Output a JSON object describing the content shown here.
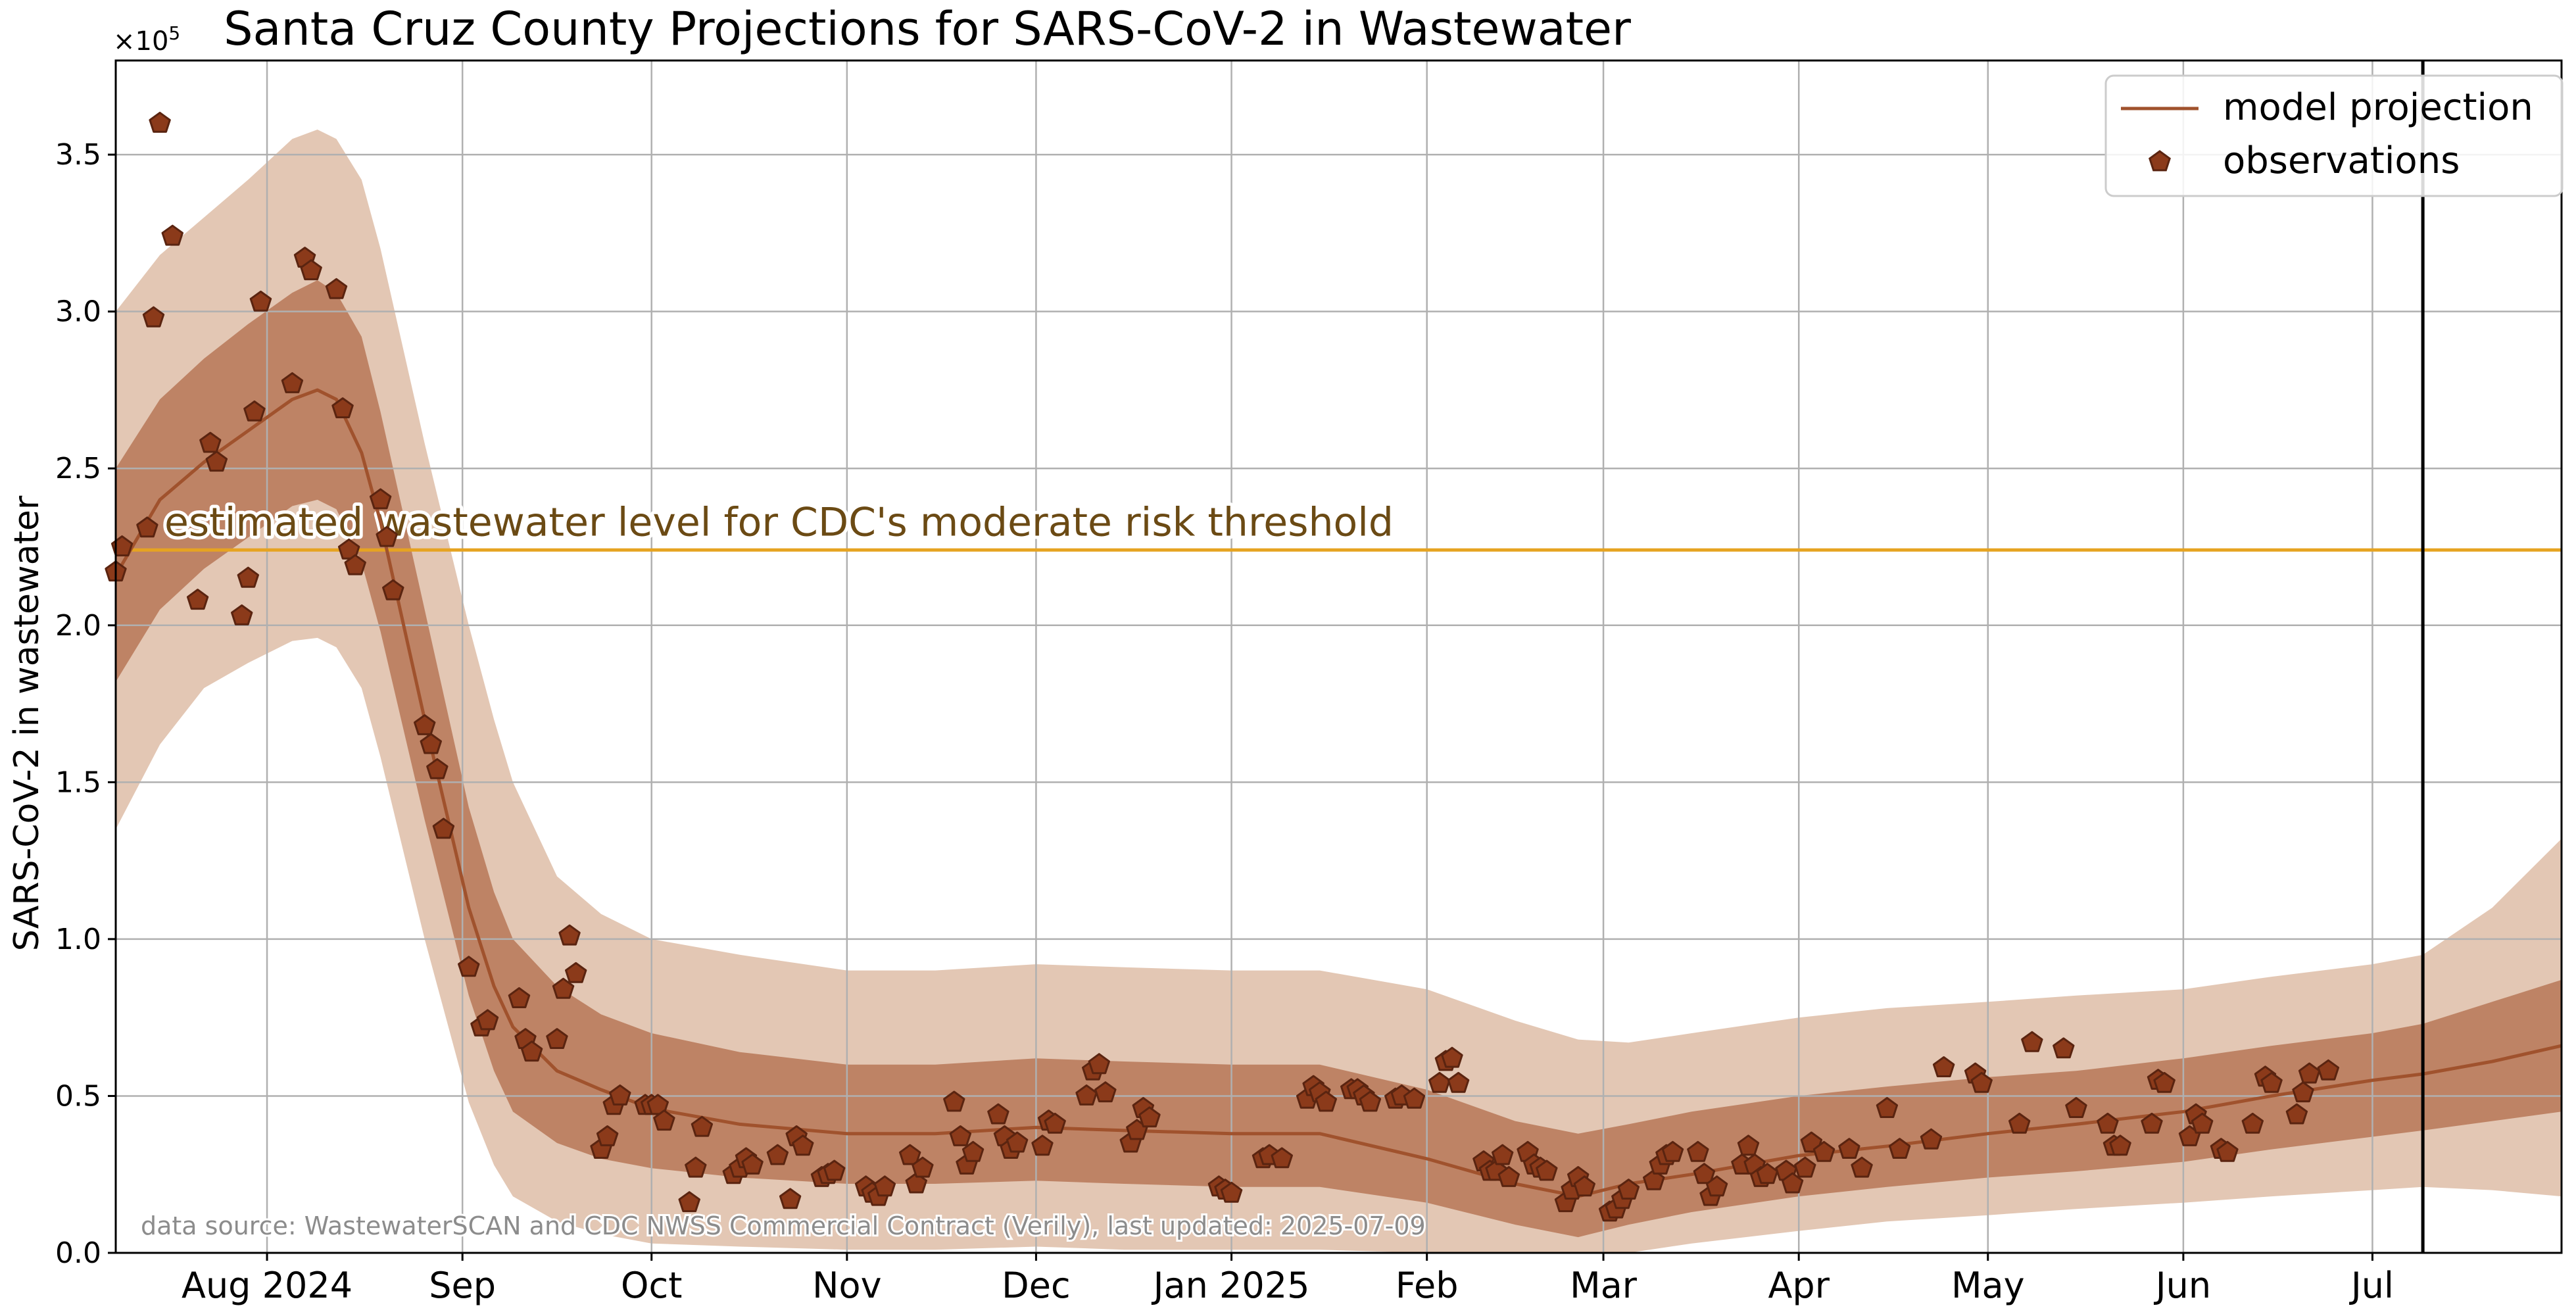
{
  "chart_data": {
    "type": "line",
    "title": "Santa Cruz County Projections for SARS-CoV-2 in Wastewater",
    "ylabel": "SARS-CoV-2 in wastewater",
    "xlabel": "",
    "y_offset_label": "×10",
    "y_offset_exp": "5",
    "ylim": [
      0,
      380000
    ],
    "xlim": [
      "2024-07-08",
      "2025-07-31"
    ],
    "grid": true,
    "legend_position": "top-right",
    "ytick_values": [
      0,
      50000,
      100000,
      150000,
      200000,
      250000,
      300000,
      350000
    ],
    "ytick_labels": [
      "0.0",
      "0.5",
      "1.0",
      "1.5",
      "2.0",
      "2.5",
      "3.0",
      "3.5"
    ],
    "xticks": [
      {
        "date": "2024-08-01",
        "label": "Aug 2024"
      },
      {
        "date": "2024-09-01",
        "label": "Sep"
      },
      {
        "date": "2024-10-01",
        "label": "Oct"
      },
      {
        "date": "2024-11-01",
        "label": "Nov"
      },
      {
        "date": "2024-12-01",
        "label": "Dec"
      },
      {
        "date": "2025-01-01",
        "label": "Jan 2025"
      },
      {
        "date": "2025-02-01",
        "label": "Feb"
      },
      {
        "date": "2025-03-01",
        "label": "Mar"
      },
      {
        "date": "2025-04-01",
        "label": "Apr"
      },
      {
        "date": "2025-05-01",
        "label": "May"
      },
      {
        "date": "2025-06-01",
        "label": "Jun"
      },
      {
        "date": "2025-07-01",
        "label": "Jul"
      }
    ],
    "threshold": {
      "value": 224000,
      "label": "estimated wastewater level for CDC's moderate risk threshold",
      "color": "#e6a321",
      "label_color": "#6b4a14"
    },
    "today_line": {
      "date": "2025-07-09",
      "color": "#000000"
    },
    "colors": {
      "outer_band": "#e3c7b4",
      "inner_band": "#be8365",
      "line": "#a0522d",
      "marker_fill": "#8b3a1a",
      "marker_edge": "#5a2410"
    },
    "legend": [
      {
        "label": "model projection",
        "kind": "line"
      },
      {
        "label": "observations",
        "kind": "marker"
      }
    ],
    "annotation": "data source: WastewaterSCAN and CDC NWSS Commercial Contract (Verily), last updated: 2025-07-09",
    "model_projection": [
      {
        "x": "2024-07-08",
        "y": 216000,
        "lo50": 182000,
        "hi50": 250000,
        "lo90": 135000,
        "hi90": 300000
      },
      {
        "x": "2024-07-15",
        "y": 240000,
        "lo50": 205000,
        "hi50": 272000,
        "lo90": 162000,
        "hi90": 318000
      },
      {
        "x": "2024-07-22",
        "y": 252000,
        "lo50": 218000,
        "hi50": 285000,
        "lo90": 180000,
        "hi90": 330000
      },
      {
        "x": "2024-07-29",
        "y": 262000,
        "lo50": 228000,
        "hi50": 296000,
        "lo90": 188000,
        "hi90": 342000
      },
      {
        "x": "2024-08-05",
        "y": 272000,
        "lo50": 238000,
        "hi50": 306000,
        "lo90": 195000,
        "hi90": 355000
      },
      {
        "x": "2024-08-09",
        "y": 275000,
        "lo50": 240000,
        "hi50": 310000,
        "lo90": 196000,
        "hi90": 358000
      },
      {
        "x": "2024-08-12",
        "y": 272000,
        "lo50": 237000,
        "hi50": 306000,
        "lo90": 193000,
        "hi90": 355000
      },
      {
        "x": "2024-08-16",
        "y": 255000,
        "lo50": 220000,
        "hi50": 292000,
        "lo90": 180000,
        "hi90": 342000
      },
      {
        "x": "2024-08-19",
        "y": 233000,
        "lo50": 198000,
        "hi50": 268000,
        "lo90": 158000,
        "hi90": 320000
      },
      {
        "x": "2024-08-26",
        "y": 170000,
        "lo50": 138000,
        "hi50": 205000,
        "lo90": 100000,
        "hi90": 258000
      },
      {
        "x": "2024-09-02",
        "y": 110000,
        "lo50": 82000,
        "hi50": 142000,
        "lo90": 48000,
        "hi90": 200000
      },
      {
        "x": "2024-09-06",
        "y": 85000,
        "lo50": 58000,
        "hi50": 115000,
        "lo90": 28000,
        "hi90": 170000
      },
      {
        "x": "2024-09-09",
        "y": 72000,
        "lo50": 45000,
        "hi50": 100000,
        "lo90": 18000,
        "hi90": 150000
      },
      {
        "x": "2024-09-16",
        "y": 58000,
        "lo50": 35000,
        "hi50": 85000,
        "lo90": 10000,
        "hi90": 120000
      },
      {
        "x": "2024-09-23",
        "y": 52000,
        "lo50": 30000,
        "hi50": 76000,
        "lo90": 6000,
        "hi90": 108000
      },
      {
        "x": "2024-10-01",
        "y": 46000,
        "lo50": 27000,
        "hi50": 70000,
        "lo90": 3000,
        "hi90": 100000
      },
      {
        "x": "2024-10-15",
        "y": 41000,
        "lo50": 24000,
        "hi50": 64000,
        "lo90": 2000,
        "hi90": 95000
      },
      {
        "x": "2024-11-01",
        "y": 38000,
        "lo50": 22000,
        "hi50": 60000,
        "lo90": 1000,
        "hi90": 90000
      },
      {
        "x": "2024-11-15",
        "y": 38000,
        "lo50": 22000,
        "hi50": 60000,
        "lo90": 1000,
        "hi90": 90000
      },
      {
        "x": "2024-12-01",
        "y": 40000,
        "lo50": 23000,
        "hi50": 62000,
        "lo90": 2000,
        "hi90": 92000
      },
      {
        "x": "2024-12-15",
        "y": 39000,
        "lo50": 22000,
        "hi50": 61000,
        "lo90": 1000,
        "hi90": 91000
      },
      {
        "x": "2025-01-01",
        "y": 38000,
        "lo50": 21000,
        "hi50": 60000,
        "lo90": 1000,
        "hi90": 90000
      },
      {
        "x": "2025-01-15",
        "y": 38000,
        "lo50": 21000,
        "hi50": 60000,
        "lo90": 1000,
        "hi90": 90000
      },
      {
        "x": "2025-02-01",
        "y": 30000,
        "lo50": 16000,
        "hi50": 52000,
        "lo90": 0,
        "hi90": 84000
      },
      {
        "x": "2025-02-15",
        "y": 22000,
        "lo50": 9000,
        "hi50": 42000,
        "lo90": 0,
        "hi90": 74000
      },
      {
        "x": "2025-02-25",
        "y": 18000,
        "lo50": 5000,
        "hi50": 38000,
        "lo90": 0,
        "hi90": 68000
      },
      {
        "x": "2025-03-05",
        "y": 22000,
        "lo50": 9000,
        "hi50": 41000,
        "lo90": 0,
        "hi90": 67000
      },
      {
        "x": "2025-03-15",
        "y": 25000,
        "lo50": 13000,
        "hi50": 45000,
        "lo90": 3000,
        "hi90": 70000
      },
      {
        "x": "2025-04-01",
        "y": 31000,
        "lo50": 18000,
        "hi50": 50000,
        "lo90": 7000,
        "hi90": 75000
      },
      {
        "x": "2025-04-15",
        "y": 34000,
        "lo50": 21000,
        "hi50": 53000,
        "lo90": 10000,
        "hi90": 78000
      },
      {
        "x": "2025-05-01",
        "y": 38000,
        "lo50": 24000,
        "hi50": 56000,
        "lo90": 12000,
        "hi90": 80000
      },
      {
        "x": "2025-05-15",
        "y": 41000,
        "lo50": 26000,
        "hi50": 58000,
        "lo90": 14000,
        "hi90": 82000
      },
      {
        "x": "2025-06-01",
        "y": 45000,
        "lo50": 29000,
        "hi50": 62000,
        "lo90": 16000,
        "hi90": 84000
      },
      {
        "x": "2025-06-15",
        "y": 50000,
        "lo50": 33000,
        "hi50": 66000,
        "lo90": 18000,
        "hi90": 88000
      },
      {
        "x": "2025-07-01",
        "y": 55000,
        "lo50": 37000,
        "hi50": 70000,
        "lo90": 20000,
        "hi90": 92000
      },
      {
        "x": "2025-07-09",
        "y": 57000,
        "lo50": 39000,
        "hi50": 73000,
        "lo90": 21000,
        "hi90": 95000
      },
      {
        "x": "2025-07-20",
        "y": 61000,
        "lo50": 42000,
        "hi50": 80000,
        "lo90": 20000,
        "hi90": 110000
      },
      {
        "x": "2025-07-31",
        "y": 66000,
        "lo50": 45000,
        "hi50": 87000,
        "lo90": 18000,
        "hi90": 132000
      }
    ],
    "observations": [
      {
        "x": "2024-07-08",
        "y": 217000
      },
      {
        "x": "2024-07-09",
        "y": 225000
      },
      {
        "x": "2024-07-13",
        "y": 231000
      },
      {
        "x": "2024-07-14",
        "y": 298000
      },
      {
        "x": "2024-07-15",
        "y": 360000
      },
      {
        "x": "2024-07-17",
        "y": 324000
      },
      {
        "x": "2024-07-21",
        "y": 208000
      },
      {
        "x": "2024-07-23",
        "y": 258000
      },
      {
        "x": "2024-07-24",
        "y": 252000
      },
      {
        "x": "2024-07-28",
        "y": 203000
      },
      {
        "x": "2024-07-29",
        "y": 215000
      },
      {
        "x": "2024-07-30",
        "y": 268000
      },
      {
        "x": "2024-07-31",
        "y": 303000
      },
      {
        "x": "2024-08-05",
        "y": 277000
      },
      {
        "x": "2024-08-07",
        "y": 317000
      },
      {
        "x": "2024-08-08",
        "y": 313000
      },
      {
        "x": "2024-08-12",
        "y": 307000
      },
      {
        "x": "2024-08-13",
        "y": 269000
      },
      {
        "x": "2024-08-14",
        "y": 224000
      },
      {
        "x": "2024-08-15",
        "y": 219000
      },
      {
        "x": "2024-08-19",
        "y": 240000
      },
      {
        "x": "2024-08-20",
        "y": 228000
      },
      {
        "x": "2024-08-21",
        "y": 211000
      },
      {
        "x": "2024-08-26",
        "y": 168000
      },
      {
        "x": "2024-08-27",
        "y": 162000
      },
      {
        "x": "2024-08-28",
        "y": 154000
      },
      {
        "x": "2024-08-29",
        "y": 135000
      },
      {
        "x": "2024-09-02",
        "y": 91000
      },
      {
        "x": "2024-09-04",
        "y": 72000
      },
      {
        "x": "2024-09-05",
        "y": 74000
      },
      {
        "x": "2024-09-10",
        "y": 81000
      },
      {
        "x": "2024-09-11",
        "y": 68000
      },
      {
        "x": "2024-09-12",
        "y": 64000
      },
      {
        "x": "2024-09-16",
        "y": 68000
      },
      {
        "x": "2024-09-17",
        "y": 84000
      },
      {
        "x": "2024-09-18",
        "y": 101000
      },
      {
        "x": "2024-09-19",
        "y": 89000
      },
      {
        "x": "2024-09-23",
        "y": 33000
      },
      {
        "x": "2024-09-24",
        "y": 37000
      },
      {
        "x": "2024-09-25",
        "y": 47000
      },
      {
        "x": "2024-09-26",
        "y": 50000
      },
      {
        "x": "2024-09-30",
        "y": 47000
      },
      {
        "x": "2024-10-01",
        "y": 47000
      },
      {
        "x": "2024-10-02",
        "y": 47000
      },
      {
        "x": "2024-10-03",
        "y": 42000
      },
      {
        "x": "2024-10-07",
        "y": 16000
      },
      {
        "x": "2024-10-08",
        "y": 27000
      },
      {
        "x": "2024-10-09",
        "y": 40000
      },
      {
        "x": "2024-10-14",
        "y": 25000
      },
      {
        "x": "2024-10-15",
        "y": 27000
      },
      {
        "x": "2024-10-16",
        "y": 30000
      },
      {
        "x": "2024-10-17",
        "y": 28000
      },
      {
        "x": "2024-10-21",
        "y": 31000
      },
      {
        "x": "2024-10-23",
        "y": 17000
      },
      {
        "x": "2024-10-24",
        "y": 37000
      },
      {
        "x": "2024-10-25",
        "y": 34000
      },
      {
        "x": "2024-10-28",
        "y": 24000
      },
      {
        "x": "2024-10-29",
        "y": 25000
      },
      {
        "x": "2024-10-30",
        "y": 26000
      },
      {
        "x": "2024-11-04",
        "y": 21000
      },
      {
        "x": "2024-11-05",
        "y": 19000
      },
      {
        "x": "2024-11-06",
        "y": 18000
      },
      {
        "x": "2024-11-07",
        "y": 21000
      },
      {
        "x": "2024-11-11",
        "y": 31000
      },
      {
        "x": "2024-11-12",
        "y": 22000
      },
      {
        "x": "2024-11-13",
        "y": 27000
      },
      {
        "x": "2024-11-18",
        "y": 48000
      },
      {
        "x": "2024-11-19",
        "y": 37000
      },
      {
        "x": "2024-11-20",
        "y": 28000
      },
      {
        "x": "2024-11-21",
        "y": 32000
      },
      {
        "x": "2024-11-25",
        "y": 44000
      },
      {
        "x": "2024-11-26",
        "y": 37000
      },
      {
        "x": "2024-11-27",
        "y": 33000
      },
      {
        "x": "2024-11-28",
        "y": 35000
      },
      {
        "x": "2024-12-02",
        "y": 34000
      },
      {
        "x": "2024-12-03",
        "y": 42000
      },
      {
        "x": "2024-12-04",
        "y": 41000
      },
      {
        "x": "2024-12-09",
        "y": 50000
      },
      {
        "x": "2024-12-10",
        "y": 58000
      },
      {
        "x": "2024-12-11",
        "y": 60000
      },
      {
        "x": "2024-12-12",
        "y": 51000
      },
      {
        "x": "2024-12-16",
        "y": 35000
      },
      {
        "x": "2024-12-17",
        "y": 39000
      },
      {
        "x": "2024-12-18",
        "y": 46000
      },
      {
        "x": "2024-12-19",
        "y": 43000
      },
      {
        "x": "2024-12-30",
        "y": 21000
      },
      {
        "x": "2024-12-31",
        "y": 20000
      },
      {
        "x": "2025-01-01",
        "y": 19000
      },
      {
        "x": "2025-01-06",
        "y": 30000
      },
      {
        "x": "2025-01-07",
        "y": 31000
      },
      {
        "x": "2025-01-09",
        "y": 30000
      },
      {
        "x": "2025-01-13",
        "y": 49000
      },
      {
        "x": "2025-01-14",
        "y": 53000
      },
      {
        "x": "2025-01-15",
        "y": 51000
      },
      {
        "x": "2025-01-16",
        "y": 48000
      },
      {
        "x": "2025-01-20",
        "y": 52000
      },
      {
        "x": "2025-01-21",
        "y": 52000
      },
      {
        "x": "2025-01-22",
        "y": 50000
      },
      {
        "x": "2025-01-23",
        "y": 48000
      },
      {
        "x": "2025-01-27",
        "y": 49000
      },
      {
        "x": "2025-01-28",
        "y": 50000
      },
      {
        "x": "2025-01-30",
        "y": 49000
      },
      {
        "x": "2025-02-03",
        "y": 54000
      },
      {
        "x": "2025-02-04",
        "y": 61000
      },
      {
        "x": "2025-02-05",
        "y": 62000
      },
      {
        "x": "2025-02-06",
        "y": 54000
      },
      {
        "x": "2025-02-10",
        "y": 29000
      },
      {
        "x": "2025-02-11",
        "y": 26000
      },
      {
        "x": "2025-02-12",
        "y": 26000
      },
      {
        "x": "2025-02-13",
        "y": 31000
      },
      {
        "x": "2025-02-14",
        "y": 24000
      },
      {
        "x": "2025-02-17",
        "y": 32000
      },
      {
        "x": "2025-02-18",
        "y": 28000
      },
      {
        "x": "2025-02-19",
        "y": 27000
      },
      {
        "x": "2025-02-20",
        "y": 26000
      },
      {
        "x": "2025-02-23",
        "y": 16000
      },
      {
        "x": "2025-02-24",
        "y": 20000
      },
      {
        "x": "2025-02-25",
        "y": 24000
      },
      {
        "x": "2025-02-26",
        "y": 21000
      },
      {
        "x": "2025-03-02",
        "y": 13000
      },
      {
        "x": "2025-03-03",
        "y": 14000
      },
      {
        "x": "2025-03-04",
        "y": 17000
      },
      {
        "x": "2025-03-05",
        "y": 20000
      },
      {
        "x": "2025-03-09",
        "y": 23000
      },
      {
        "x": "2025-03-10",
        "y": 28000
      },
      {
        "x": "2025-03-11",
        "y": 31000
      },
      {
        "x": "2025-03-12",
        "y": 32000
      },
      {
        "x": "2025-03-16",
        "y": 32000
      },
      {
        "x": "2025-03-17",
        "y": 25000
      },
      {
        "x": "2025-03-18",
        "y": 18000
      },
      {
        "x": "2025-03-19",
        "y": 21000
      },
      {
        "x": "2025-03-23",
        "y": 28000
      },
      {
        "x": "2025-03-24",
        "y": 34000
      },
      {
        "x": "2025-03-25",
        "y": 28000
      },
      {
        "x": "2025-03-26",
        "y": 24000
      },
      {
        "x": "2025-03-27",
        "y": 25000
      },
      {
        "x": "2025-03-30",
        "y": 26000
      },
      {
        "x": "2025-03-31",
        "y": 22000
      },
      {
        "x": "2025-04-02",
        "y": 27000
      },
      {
        "x": "2025-04-03",
        "y": 35000
      },
      {
        "x": "2025-04-05",
        "y": 32000
      },
      {
        "x": "2025-04-09",
        "y": 33000
      },
      {
        "x": "2025-04-11",
        "y": 27000
      },
      {
        "x": "2025-04-15",
        "y": 46000
      },
      {
        "x": "2025-04-17",
        "y": 33000
      },
      {
        "x": "2025-04-22",
        "y": 36000
      },
      {
        "x": "2025-04-24",
        "y": 59000
      },
      {
        "x": "2025-04-29",
        "y": 57000
      },
      {
        "x": "2025-04-30",
        "y": 54000
      },
      {
        "x": "2025-05-06",
        "y": 41000
      },
      {
        "x": "2025-05-08",
        "y": 67000
      },
      {
        "x": "2025-05-13",
        "y": 65000
      },
      {
        "x": "2025-05-15",
        "y": 46000
      },
      {
        "x": "2025-05-20",
        "y": 41000
      },
      {
        "x": "2025-05-21",
        "y": 34000
      },
      {
        "x": "2025-05-22",
        "y": 34000
      },
      {
        "x": "2025-05-27",
        "y": 41000
      },
      {
        "x": "2025-05-28",
        "y": 55000
      },
      {
        "x": "2025-05-29",
        "y": 54000
      },
      {
        "x": "2025-06-02",
        "y": 37000
      },
      {
        "x": "2025-06-03",
        "y": 44000
      },
      {
        "x": "2025-06-04",
        "y": 41000
      },
      {
        "x": "2025-06-07",
        "y": 33000
      },
      {
        "x": "2025-06-08",
        "y": 32000
      },
      {
        "x": "2025-06-12",
        "y": 41000
      },
      {
        "x": "2025-06-14",
        "y": 56000
      },
      {
        "x": "2025-06-15",
        "y": 54000
      },
      {
        "x": "2025-06-19",
        "y": 44000
      },
      {
        "x": "2025-06-20",
        "y": 51000
      },
      {
        "x": "2025-06-21",
        "y": 57000
      },
      {
        "x": "2025-06-24",
        "y": 58000
      }
    ]
  }
}
